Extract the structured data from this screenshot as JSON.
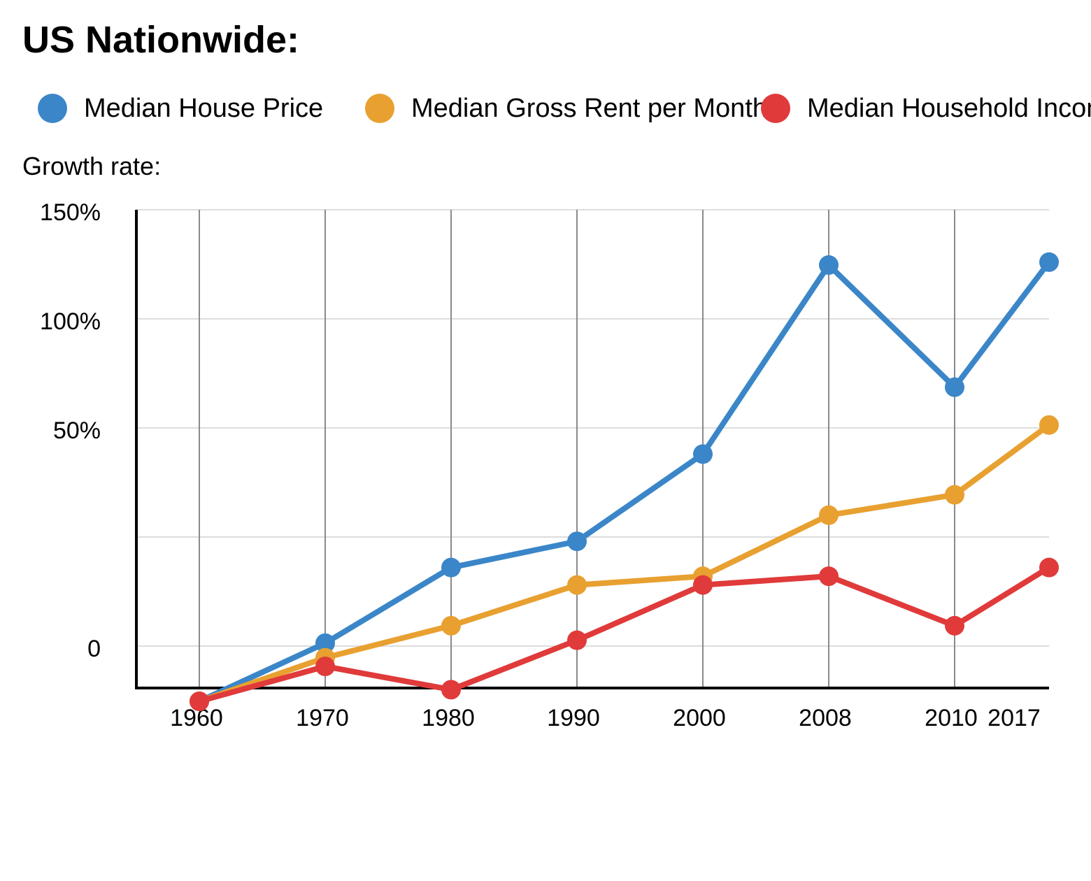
{
  "title": "US Nationwide:",
  "y_axis_title": "Growth rate:",
  "chart_data": {
    "type": "line",
    "title": "US Nationwide:",
    "ylabel": "Growth rate:",
    "xlabel": "",
    "x_tick_labels": [
      "1960",
      "1970",
      "1980",
      "1990",
      "2000",
      "2008",
      "2010",
      "2017"
    ],
    "y_tick_labels": [
      "150%",
      "100%",
      "50%",
      "0"
    ],
    "y_ticks": [
      150,
      100,
      50,
      0
    ],
    "ylim": [
      -19,
      150
    ],
    "y_gridlines": [
      150,
      100,
      50,
      0,
      0
    ],
    "grid": true,
    "legend_position": "top",
    "series": [
      {
        "name": "Median House Price",
        "color": "#3a86c8",
        "values": [
          -19,
          1,
          27,
          36,
          66,
          131,
          89,
          132
        ]
      },
      {
        "name": "Median Gross Rent per Month",
        "color": "#e8a030",
        "values": [
          -19,
          -4,
          7,
          21,
          24,
          45,
          52,
          76
        ]
      },
      {
        "name": "Median Household Income",
        "color": "#e03a3a",
        "values": [
          -19,
          -7,
          -15,
          2,
          21,
          24,
          7,
          27
        ]
      }
    ]
  }
}
